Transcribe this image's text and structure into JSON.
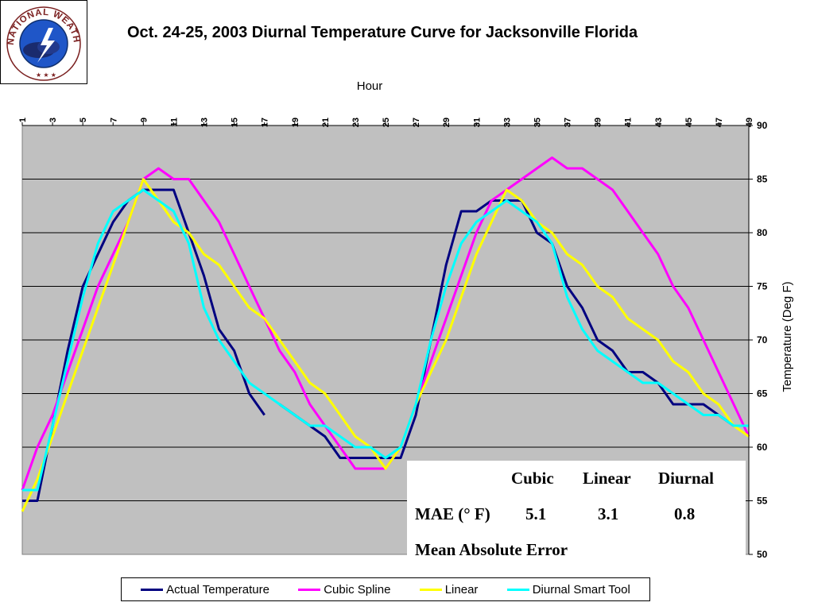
{
  "header": {
    "title": "Oct. 24-25, 2003 Diurnal Temperature Curve for Jacksonville Florida",
    "logo_text": "NATIONAL WEATHER SERVICE"
  },
  "mae_table": {
    "headers": [
      "Cubic",
      "Linear",
      "Diurnal"
    ],
    "row_label": "MAE (° F)",
    "values": [
      "5.1",
      "3.1",
      "0.8"
    ],
    "caption": "Mean Absolute Error"
  },
  "colors": {
    "plot_background": "#C0C0C0",
    "actual": "#000080",
    "cubic": "#FF00FF",
    "linear": "#FFFF00",
    "diurnal": "#00FFFF"
  },
  "chart_data": {
    "type": "line",
    "title": "Oct. 24-25, 2003 Diurnal Temperature Curve for Jacksonville Florida",
    "xlabel": "Hour",
    "ylabel": "Temperature (Deg F)",
    "x_axis_position": "top",
    "y_axis_position": "right",
    "xlim": [
      1,
      49
    ],
    "ylim": [
      50,
      90
    ],
    "x_ticks": [
      1,
      3,
      5,
      7,
      9,
      11,
      13,
      15,
      17,
      19,
      21,
      23,
      25,
      27,
      29,
      31,
      33,
      35,
      37,
      39,
      41,
      43,
      45,
      47,
      49
    ],
    "y_ticks": [
      50,
      55,
      60,
      65,
      70,
      75,
      80,
      85,
      90
    ],
    "grid": "horizontal",
    "legend_position": "bottom",
    "series": [
      {
        "name": "Actual Temperature",
        "color": "#000080",
        "segments": [
          {
            "x": [
              1,
              2,
              3,
              4,
              5,
              6,
              7,
              8,
              9,
              10,
              11,
              12,
              13,
              14,
              15,
              16,
              17
            ],
            "y": [
              55,
              55,
              62,
              69,
              75,
              78,
              81,
              83,
              84,
              84,
              84,
              80,
              76,
              71,
              69,
              65,
              63
            ]
          },
          {
            "x": [
              18,
              19,
              20,
              21,
              22,
              23,
              24,
              25,
              26,
              27,
              28,
              29,
              30,
              31,
              32,
              33,
              34,
              35,
              36,
              37,
              38,
              39,
              40,
              41,
              42,
              43,
              44,
              45,
              46,
              47,
              48,
              49
            ],
            "y": [
              64,
              63,
              62,
              61,
              59,
              59,
              59,
              59,
              59,
              63,
              70,
              77,
              82,
              82,
              83,
              83,
              83,
              80,
              79,
              75,
              73,
              70,
              69,
              67,
              67,
              66,
              64,
              64,
              64,
              63,
              62,
              62
            ]
          }
        ]
      },
      {
        "name": "Cubic Spline",
        "color": "#FF00FF",
        "x": [
          1,
          2,
          3,
          4,
          5,
          6,
          7,
          8,
          9,
          10,
          11,
          12,
          13,
          14,
          15,
          16,
          17,
          18,
          19,
          20,
          21,
          22,
          23,
          24,
          25,
          26,
          27,
          28,
          29,
          30,
          31,
          32,
          33,
          34,
          35,
          36,
          37,
          38,
          39,
          40,
          41,
          42,
          43,
          44,
          45,
          46,
          47,
          48,
          49
        ],
        "y": [
          56,
          60,
          63,
          67,
          71,
          75,
          78,
          81,
          85,
          86,
          85,
          85,
          83,
          81,
          78,
          75,
          72,
          69,
          67,
          64,
          62,
          60,
          58,
          58,
          58,
          60,
          64,
          68,
          72,
          76,
          80,
          83,
          84,
          85,
          86,
          87,
          86,
          86,
          85,
          84,
          82,
          80,
          78,
          75,
          73,
          70,
          67,
          64,
          61
        ]
      },
      {
        "name": "Linear",
        "color": "#FFFF00",
        "x": [
          1,
          2,
          3,
          4,
          5,
          6,
          7,
          8,
          9,
          10,
          11,
          12,
          13,
          14,
          15,
          16,
          17,
          18,
          19,
          20,
          21,
          22,
          23,
          24,
          25,
          26,
          27,
          28,
          29,
          30,
          31,
          32,
          33,
          34,
          35,
          36,
          37,
          38,
          39,
          40,
          41,
          42,
          43,
          44,
          45,
          46,
          47,
          48,
          49
        ],
        "y": [
          54,
          57,
          61,
          65,
          69,
          73,
          77,
          81,
          85,
          83,
          81,
          80,
          78,
          77,
          75,
          73,
          72,
          70,
          68,
          66,
          65,
          63,
          61,
          60,
          58,
          60,
          64,
          67,
          70,
          74,
          78,
          81,
          84,
          83,
          81,
          80,
          78,
          77,
          75,
          74,
          72,
          71,
          70,
          68,
          67,
          65,
          64,
          62,
          61
        ]
      },
      {
        "name": "Diurnal Smart Tool",
        "color": "#00FFFF",
        "x": [
          1,
          2,
          3,
          4,
          5,
          6,
          7,
          8,
          9,
          10,
          11,
          12,
          13,
          14,
          15,
          16,
          17,
          18,
          19,
          20,
          21,
          22,
          23,
          24,
          25,
          26,
          27,
          28,
          29,
          30,
          31,
          32,
          33,
          34,
          35,
          36,
          37,
          38,
          39,
          40,
          41,
          42,
          43,
          44,
          45,
          46,
          47,
          48,
          49
        ],
        "y": [
          56,
          56,
          62,
          68,
          74,
          79,
          82,
          83,
          84,
          83,
          82,
          79,
          73,
          70,
          68,
          66,
          65,
          64,
          63,
          62,
          62,
          61,
          60,
          60,
          59,
          60,
          64,
          70,
          75,
          79,
          81,
          82,
          83,
          82,
          81,
          79,
          74,
          71,
          69,
          68,
          67,
          66,
          66,
          65,
          64,
          63,
          63,
          62,
          62
        ]
      }
    ]
  }
}
